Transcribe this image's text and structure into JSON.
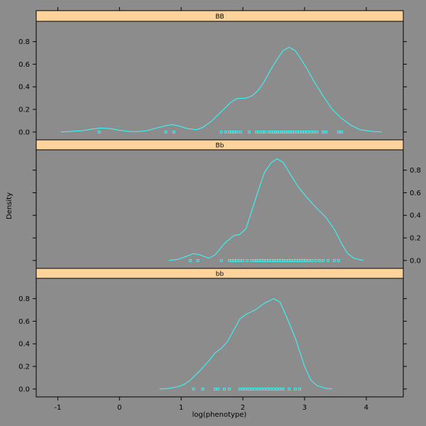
{
  "chart_data": {
    "type": "line",
    "subtype": "density-lattice",
    "xlabel": "log(phenotype)",
    "ylabel": "Density",
    "xlim": [
      -1.35,
      4.6
    ],
    "ylim": [
      -0.07,
      0.98
    ],
    "x_ticks": [
      -1,
      0,
      1,
      2,
      3,
      4
    ],
    "y_ticks": [
      0.0,
      0.2,
      0.4,
      0.6,
      0.8
    ],
    "colors": {
      "background": "#8c8c8c",
      "line": "#33ffff",
      "strip": "#ffd39b"
    },
    "panels": [
      {
        "label": "BB",
        "curve": [
          [
            -0.95,
            0.0
          ],
          [
            -0.8,
            0.005
          ],
          [
            -0.6,
            0.012
          ],
          [
            -0.45,
            0.025
          ],
          [
            -0.3,
            0.035
          ],
          [
            -0.15,
            0.03
          ],
          [
            0.0,
            0.015
          ],
          [
            0.15,
            0.005
          ],
          [
            0.3,
            0.003
          ],
          [
            0.45,
            0.012
          ],
          [
            0.6,
            0.035
          ],
          [
            0.75,
            0.055
          ],
          [
            0.85,
            0.065
          ],
          [
            0.95,
            0.055
          ],
          [
            1.1,
            0.03
          ],
          [
            1.25,
            0.02
          ],
          [
            1.35,
            0.04
          ],
          [
            1.5,
            0.1
          ],
          [
            1.65,
            0.18
          ],
          [
            1.8,
            0.26
          ],
          [
            1.9,
            0.295
          ],
          [
            2.05,
            0.3
          ],
          [
            2.15,
            0.32
          ],
          [
            2.25,
            0.37
          ],
          [
            2.35,
            0.45
          ],
          [
            2.45,
            0.55
          ],
          [
            2.55,
            0.64
          ],
          [
            2.65,
            0.72
          ],
          [
            2.75,
            0.75
          ],
          [
            2.85,
            0.72
          ],
          [
            2.95,
            0.64
          ],
          [
            3.05,
            0.55
          ],
          [
            3.15,
            0.45
          ],
          [
            3.3,
            0.32
          ],
          [
            3.45,
            0.2
          ],
          [
            3.6,
            0.12
          ],
          [
            3.75,
            0.06
          ],
          [
            3.9,
            0.02
          ],
          [
            4.1,
            0.005
          ],
          [
            4.25,
            0.0
          ]
        ],
        "rug": [
          -0.33,
          0.75,
          0.88,
          1.65,
          1.72,
          1.78,
          1.82,
          1.86,
          1.9,
          1.96,
          2.1,
          2.22,
          2.27,
          2.32,
          2.36,
          2.42,
          2.46,
          2.5,
          2.53,
          2.56,
          2.6,
          2.63,
          2.66,
          2.7,
          2.73,
          2.76,
          2.8,
          2.84,
          2.88,
          2.92,
          2.96,
          3.0,
          3.05,
          3.1,
          3.15,
          3.2,
          3.3,
          3.35,
          3.55,
          3.6
        ]
      },
      {
        "label": "Bb",
        "curve": [
          [
            0.8,
            0.0
          ],
          [
            0.95,
            0.01
          ],
          [
            1.1,
            0.04
          ],
          [
            1.2,
            0.06
          ],
          [
            1.3,
            0.05
          ],
          [
            1.45,
            0.02
          ],
          [
            1.55,
            0.05
          ],
          [
            1.7,
            0.15
          ],
          [
            1.85,
            0.22
          ],
          [
            1.95,
            0.23
          ],
          [
            2.05,
            0.28
          ],
          [
            2.15,
            0.45
          ],
          [
            2.25,
            0.62
          ],
          [
            2.35,
            0.78
          ],
          [
            2.45,
            0.86
          ],
          [
            2.55,
            0.9
          ],
          [
            2.65,
            0.87
          ],
          [
            2.75,
            0.78
          ],
          [
            2.9,
            0.65
          ],
          [
            3.05,
            0.55
          ],
          [
            3.2,
            0.46
          ],
          [
            3.35,
            0.38
          ],
          [
            3.5,
            0.26
          ],
          [
            3.6,
            0.15
          ],
          [
            3.7,
            0.06
          ],
          [
            3.8,
            0.02
          ],
          [
            3.95,
            0.0
          ]
        ],
        "rug": [
          1.15,
          1.27,
          1.65,
          1.78,
          1.82,
          1.86,
          1.9,
          1.95,
          2.0,
          2.07,
          2.14,
          2.19,
          2.22,
          2.26,
          2.3,
          2.34,
          2.38,
          2.42,
          2.46,
          2.5,
          2.54,
          2.58,
          2.62,
          2.66,
          2.7,
          2.74,
          2.78,
          2.82,
          2.86,
          2.9,
          2.94,
          2.98,
          3.02,
          3.07,
          3.12,
          3.18,
          3.24,
          3.3,
          3.38,
          3.48,
          3.55
        ]
      },
      {
        "label": "bb",
        "curve": [
          [
            0.65,
            0.0
          ],
          [
            0.8,
            0.005
          ],
          [
            0.95,
            0.02
          ],
          [
            1.05,
            0.04
          ],
          [
            1.15,
            0.08
          ],
          [
            1.3,
            0.16
          ],
          [
            1.45,
            0.25
          ],
          [
            1.55,
            0.32
          ],
          [
            1.65,
            0.36
          ],
          [
            1.75,
            0.42
          ],
          [
            1.85,
            0.52
          ],
          [
            1.95,
            0.62
          ],
          [
            2.05,
            0.66
          ],
          [
            2.2,
            0.7
          ],
          [
            2.35,
            0.76
          ],
          [
            2.5,
            0.8
          ],
          [
            2.6,
            0.77
          ],
          [
            2.7,
            0.65
          ],
          [
            2.85,
            0.45
          ],
          [
            3.0,
            0.2
          ],
          [
            3.1,
            0.08
          ],
          [
            3.2,
            0.03
          ],
          [
            3.35,
            0.005
          ],
          [
            3.45,
            0.0
          ]
        ],
        "rug": [
          1.2,
          1.35,
          1.55,
          1.6,
          1.7,
          1.78,
          1.95,
          2.0,
          2.05,
          2.1,
          2.15,
          2.2,
          2.25,
          2.3,
          2.35,
          2.4,
          2.45,
          2.5,
          2.55,
          2.6,
          2.65,
          2.75,
          2.85,
          2.92
        ]
      }
    ]
  }
}
